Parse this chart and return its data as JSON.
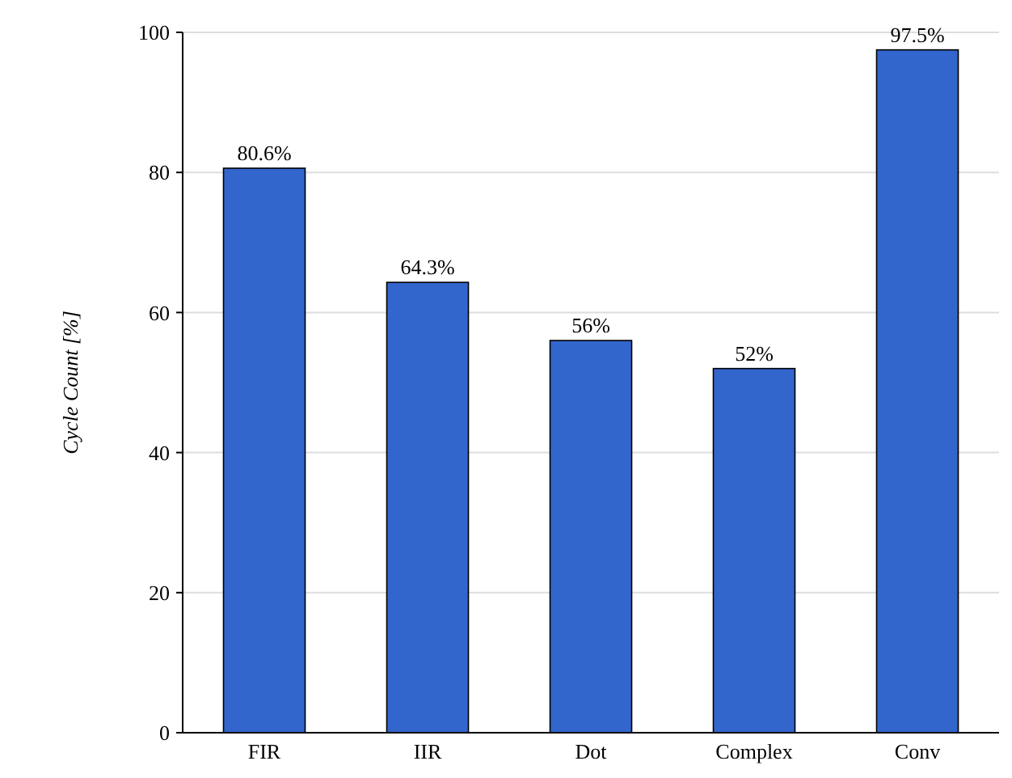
{
  "chart_data": {
    "type": "bar",
    "ylabel": "Cycle Count [%]",
    "categories": [
      "FIR",
      "IIR",
      "Dot",
      "Complex",
      "Conv"
    ],
    "values": [
      80.6,
      64.3,
      56,
      52,
      97.5
    ],
    "value_labels": [
      "80.6%",
      "64.3%",
      "56%",
      "52%",
      "97.5%"
    ],
    "color": "#3366cc",
    "ylim": [
      0,
      100
    ],
    "yticks": [
      0,
      20,
      40,
      60,
      80,
      100
    ],
    "grid": "y"
  }
}
